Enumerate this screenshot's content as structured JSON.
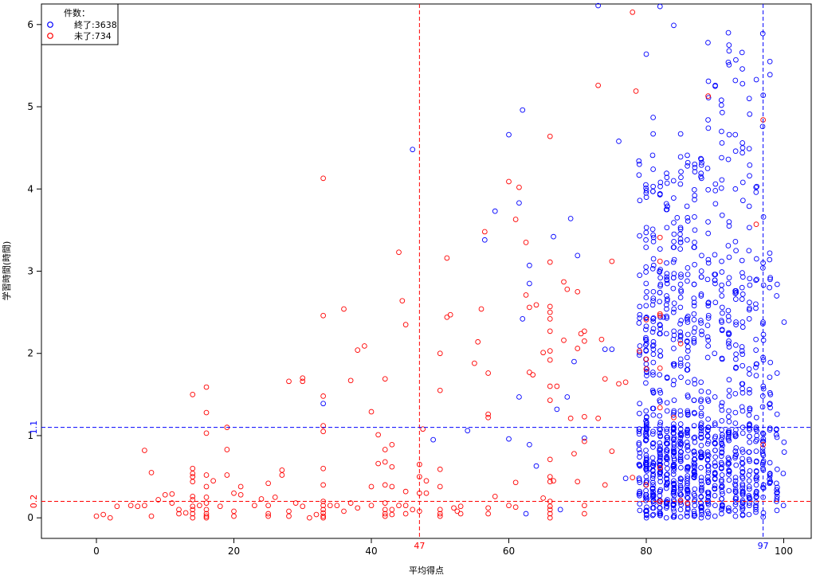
{
  "chart_data": {
    "type": "scatter",
    "xlabel": "平均得点",
    "ylabel": "学習時間(時間)",
    "xlim": [
      -8,
      104
    ],
    "ylim": [
      -0.25,
      6.25
    ],
    "x_ticks": [
      0,
      20,
      40,
      60,
      80,
      100
    ],
    "y_ticks": [
      0,
      1,
      2,
      3,
      4,
      5,
      6
    ],
    "grid": false,
    "legend": {
      "position": "top-left",
      "title": "件数：",
      "entries": [
        {
          "label": "終了:3638",
          "color": "#0000ff"
        },
        {
          "label": "未了:734",
          "color": "#ff0000"
        }
      ]
    },
    "reference_lines": [
      {
        "axis": "x",
        "value": 47,
        "label": "47",
        "color": "#ff0000"
      },
      {
        "axis": "x",
        "value": 97,
        "label": "97",
        "color": "#0000ff"
      },
      {
        "axis": "y",
        "value": 1.1,
        "label": "1.1",
        "color": "#0000ff"
      },
      {
        "axis": "y",
        "value": 0.2,
        "label": "0.2",
        "color": "#ff0000"
      }
    ],
    "series": [
      {
        "color": "#0000ff",
        "points": [
          [
            46,
            4.48
          ],
          [
            33,
            1.39
          ],
          [
            49,
            0.95
          ],
          [
            54,
            1.06
          ],
          [
            56.5,
            3.38
          ],
          [
            58,
            3.73
          ],
          [
            60,
            4.66
          ],
          [
            61.5,
            3.83
          ],
          [
            62,
            4.96
          ],
          [
            63,
            3.07
          ],
          [
            63,
            2.85
          ],
          [
            62,
            2.42
          ],
          [
            61.5,
            1.47
          ],
          [
            60,
            0.96
          ],
          [
            62.5,
            0.05
          ],
          [
            63,
            0.89
          ],
          [
            64,
            0.63
          ],
          [
            66.5,
            3.42
          ],
          [
            69,
            3.64
          ],
          [
            70,
            3.19
          ],
          [
            67,
            1.32
          ],
          [
            68.5,
            1.47
          ],
          [
            69.5,
            1.9
          ],
          [
            71,
            0.97
          ],
          [
            67.5,
            0.1
          ],
          [
            73,
            6.23
          ],
          [
            74,
            2.05
          ],
          [
            75,
            2.05
          ],
          [
            76,
            4.58
          ],
          [
            77,
            0.48
          ],
          [
            79,
            0.64
          ],
          [
            80,
            5.64
          ],
          [
            81,
            4.87
          ],
          [
            82,
            6.22
          ],
          [
            84,
            5.99
          ],
          [
            85,
            4.67
          ],
          [
            81,
            4.67
          ],
          [
            84.5,
            3.65
          ],
          [
            86,
            3.65
          ],
          [
            82.5,
            2.44
          ],
          [
            80.5,
            0.6
          ]
        ]
      },
      {
        "color": "#ff0000",
        "points": [
          [
            0,
            0.02
          ],
          [
            1,
            0.04
          ],
          [
            2,
            0.0
          ],
          [
            3,
            0.14
          ],
          [
            5,
            0.15
          ],
          [
            6,
            0.14
          ],
          [
            7,
            0.82
          ],
          [
            7,
            0.15
          ],
          [
            8,
            0.55
          ],
          [
            8,
            0.02
          ],
          [
            9,
            0.22
          ],
          [
            10,
            0.28
          ],
          [
            11,
            0.29
          ],
          [
            11,
            0.18
          ],
          [
            12,
            0.05
          ],
          [
            12,
            0.1
          ],
          [
            13,
            0.06
          ],
          [
            14,
            1.5
          ],
          [
            14,
            0.6
          ],
          [
            14,
            0.54
          ],
          [
            14,
            0.5
          ],
          [
            14,
            0.44
          ],
          [
            14,
            0.26
          ],
          [
            14,
            0.22
          ],
          [
            14,
            0.14
          ],
          [
            14,
            0.1
          ],
          [
            14,
            0.05
          ],
          [
            14,
            0.0
          ],
          [
            15,
            0.15
          ],
          [
            16,
            1.59
          ],
          [
            16,
            1.28
          ],
          [
            16,
            1.03
          ],
          [
            16,
            0.52
          ],
          [
            16,
            0.38
          ],
          [
            16,
            0.25
          ],
          [
            16,
            0.18
          ],
          [
            16,
            0.1
          ],
          [
            16,
            0.05
          ],
          [
            16,
            0.02
          ],
          [
            16,
            0.0
          ],
          [
            17,
            0.45
          ],
          [
            18,
            0.14
          ],
          [
            19,
            1.1
          ],
          [
            19,
            0.83
          ],
          [
            19,
            0.52
          ],
          [
            20,
            0.3
          ],
          [
            20,
            0.08
          ],
          [
            20,
            0.02
          ],
          [
            21,
            0.38
          ],
          [
            21,
            0.28
          ],
          [
            23,
            0.15
          ],
          [
            24,
            0.23
          ],
          [
            25,
            0.42
          ],
          [
            25,
            0.15
          ],
          [
            25,
            0.05
          ],
          [
            25,
            0.02
          ],
          [
            26,
            0.25
          ],
          [
            27,
            0.58
          ],
          [
            27,
            0.52
          ],
          [
            28,
            1.66
          ],
          [
            28,
            0.08
          ],
          [
            28,
            0.02
          ],
          [
            29,
            0.18
          ],
          [
            30,
            1.66
          ],
          [
            30,
            1.7
          ],
          [
            30,
            0.14
          ],
          [
            31,
            0.0
          ],
          [
            32,
            0.04
          ],
          [
            33,
            4.13
          ],
          [
            33,
            2.46
          ],
          [
            33,
            1.48
          ],
          [
            33,
            1.12
          ],
          [
            33,
            1.05
          ],
          [
            33,
            0.6
          ],
          [
            33,
            0.4
          ],
          [
            33,
            0.2
          ],
          [
            33,
            0.15
          ],
          [
            33,
            0.1
          ],
          [
            33,
            0.06
          ],
          [
            33,
            0.02
          ],
          [
            33,
            0.0
          ],
          [
            34,
            0.15
          ],
          [
            35,
            0.15
          ],
          [
            36,
            2.54
          ],
          [
            36,
            0.08
          ],
          [
            37,
            1.67
          ],
          [
            37,
            0.18
          ],
          [
            38,
            2.04
          ],
          [
            38,
            0.12
          ],
          [
            39,
            2.09
          ],
          [
            40,
            1.29
          ],
          [
            40,
            0.38
          ],
          [
            40,
            0.15
          ],
          [
            41,
            1.01
          ],
          [
            41,
            0.66
          ],
          [
            42,
            1.69
          ],
          [
            42,
            0.83
          ],
          [
            42,
            0.68
          ],
          [
            42,
            0.4
          ],
          [
            42,
            0.18
          ],
          [
            42,
            0.1
          ],
          [
            42,
            0.05
          ],
          [
            42,
            0.02
          ],
          [
            43,
            0.89
          ],
          [
            43,
            0.62
          ],
          [
            43,
            0.38
          ],
          [
            43,
            0.1
          ],
          [
            43,
            0.04
          ],
          [
            44,
            3.23
          ],
          [
            44,
            0.15
          ],
          [
            44.5,
            2.64
          ],
          [
            45,
            2.35
          ],
          [
            45,
            0.32
          ],
          [
            45,
            0.15
          ],
          [
            45,
            0.05
          ],
          [
            46,
            0.1
          ],
          [
            47,
            0.65
          ],
          [
            47,
            0.5
          ],
          [
            47,
            0.3
          ],
          [
            47,
            0.08
          ],
          [
            47.5,
            1.08
          ],
          [
            48,
            0.45
          ],
          [
            48,
            0.3
          ],
          [
            50,
            2.0
          ],
          [
            50,
            1.55
          ],
          [
            50,
            0.59
          ],
          [
            50,
            0.38
          ],
          [
            50,
            0.1
          ],
          [
            50,
            0.05
          ],
          [
            50,
            0.02
          ],
          [
            51,
            3.16
          ],
          [
            51,
            2.44
          ],
          [
            51.5,
            2.47
          ],
          [
            52,
            0.12
          ],
          [
            52.5,
            0.08
          ],
          [
            53,
            0.14
          ],
          [
            53,
            0.05
          ],
          [
            55,
            1.88
          ],
          [
            55.5,
            2.14
          ],
          [
            56,
            2.54
          ],
          [
            56.5,
            3.48
          ],
          [
            57,
            1.76
          ],
          [
            57,
            1.26
          ],
          [
            57,
            1.22
          ],
          [
            57,
            0.12
          ],
          [
            57,
            0.05
          ],
          [
            58,
            0.26
          ],
          [
            60,
            4.09
          ],
          [
            60,
            0.15
          ],
          [
            61,
            3.63
          ],
          [
            61,
            0.43
          ],
          [
            61,
            0.13
          ],
          [
            61.5,
            4.02
          ],
          [
            62.5,
            3.35
          ],
          [
            62.5,
            2.71
          ],
          [
            63,
            1.77
          ],
          [
            63,
            2.56
          ],
          [
            63.5,
            1.74
          ],
          [
            64,
            2.59
          ],
          [
            65,
            2.01
          ],
          [
            65,
            0.24
          ],
          [
            66,
            4.64
          ],
          [
            66,
            3.11
          ],
          [
            66,
            2.57
          ],
          [
            66,
            2.5
          ],
          [
            66,
            2.42
          ],
          [
            66,
            2.27
          ],
          [
            66,
            2.03
          ],
          [
            66,
            1.92
          ],
          [
            66,
            1.6
          ],
          [
            66,
            1.43
          ],
          [
            66,
            0.71
          ],
          [
            66,
            0.5
          ],
          [
            66,
            0.44
          ],
          [
            66,
            0.2
          ],
          [
            66,
            0.14
          ],
          [
            66,
            0.1
          ],
          [
            66,
            0.05
          ],
          [
            66,
            0.0
          ],
          [
            66.5,
            0.45
          ],
          [
            67,
            1.6
          ],
          [
            68,
            2.87
          ],
          [
            68,
            2.16
          ],
          [
            68.5,
            2.78
          ],
          [
            69,
            1.21
          ],
          [
            69.5,
            0.78
          ],
          [
            70,
            2.75
          ],
          [
            70,
            2.06
          ],
          [
            70,
            0.44
          ],
          [
            70.5,
            2.24
          ],
          [
            71,
            2.27
          ],
          [
            71,
            2.15
          ],
          [
            71,
            1.23
          ],
          [
            71,
            0.93
          ],
          [
            71,
            0.15
          ],
          [
            71,
            0.05
          ],
          [
            73,
            5.26
          ],
          [
            73,
            1.21
          ],
          [
            73.5,
            2.17
          ],
          [
            74,
            1.69
          ],
          [
            74,
            0.4
          ],
          [
            75,
            3.12
          ],
          [
            75,
            0.81
          ],
          [
            76,
            1.63
          ],
          [
            77,
            1.65
          ],
          [
            78,
            6.15
          ],
          [
            78,
            0.49
          ],
          [
            78.5,
            5.19
          ],
          [
            79,
            2.03
          ],
          [
            80,
            2.41
          ],
          [
            80,
            1.93
          ],
          [
            80,
            1.81
          ],
          [
            80,
            0.4
          ],
          [
            82,
            3.41
          ],
          [
            82,
            3.12
          ],
          [
            82,
            2.48
          ],
          [
            82,
            2.46
          ],
          [
            82,
            1.82
          ],
          [
            82,
            1.34
          ],
          [
            82,
            0.61
          ],
          [
            82,
            0.2
          ],
          [
            84,
            1.22
          ],
          [
            85,
            2.12
          ],
          [
            85,
            0.21
          ],
          [
            86,
            0.18
          ],
          [
            89,
            5.13
          ],
          [
            96,
            3.57
          ],
          [
            97,
            4.84
          ],
          [
            97,
            0.89
          ]
        ]
      }
    ]
  }
}
